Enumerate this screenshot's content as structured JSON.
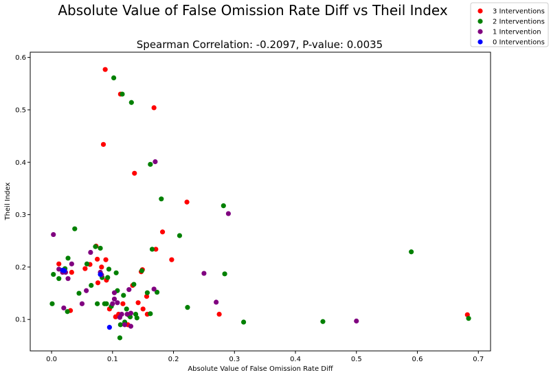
{
  "chart_data": {
    "type": "scatter",
    "suptitle": "Absolute Value of False Omission Rate Diff vs Theil Index",
    "title": "Spearman Correlation: -0.2097, P-value: 0.0035",
    "xlabel": "Absolute Value of False Omission Rate Diff",
    "ylabel": "Theil Index",
    "xlim": [
      -0.035,
      0.72
    ],
    "ylim": [
      0.04,
      0.61
    ],
    "xticks": [
      0.0,
      0.1,
      0.2,
      0.3,
      0.4,
      0.5,
      0.6,
      0.7
    ],
    "xtick_labels": [
      "0.0",
      "0.1",
      "0.2",
      "0.3",
      "0.4",
      "0.5",
      "0.6",
      "0.7"
    ],
    "yticks": [
      0.1,
      0.2,
      0.3,
      0.4,
      0.5,
      0.6
    ],
    "ytick_labels": [
      "0.1",
      "0.2",
      "0.3",
      "0.4",
      "0.5",
      "0.6"
    ],
    "legend_position": "top-right (outside plot)",
    "series": [
      {
        "name": "3 Interventions",
        "color": "#ff0000",
        "points": [
          [
            0.088,
            0.577
          ],
          [
            0.113,
            0.53
          ],
          [
            0.168,
            0.504
          ],
          [
            0.085,
            0.434
          ],
          [
            0.136,
            0.379
          ],
          [
            0.222,
            0.324
          ],
          [
            0.182,
            0.267
          ],
          [
            0.197,
            0.214
          ],
          [
            0.171,
            0.234
          ],
          [
            0.012,
            0.206
          ],
          [
            0.033,
            0.19
          ],
          [
            0.055,
            0.197
          ],
          [
            0.063,
            0.205
          ],
          [
            0.073,
            0.24
          ],
          [
            0.075,
            0.215
          ],
          [
            0.082,
            0.2
          ],
          [
            0.089,
            0.214
          ],
          [
            0.09,
            0.175
          ],
          [
            0.076,
            0.17
          ],
          [
            0.105,
            0.105
          ],
          [
            0.11,
            0.11
          ],
          [
            0.117,
            0.13
          ],
          [
            0.133,
            0.165
          ],
          [
            0.142,
            0.132
          ],
          [
            0.149,
            0.195
          ],
          [
            0.147,
            0.191
          ],
          [
            0.156,
            0.144
          ],
          [
            0.15,
            0.12
          ],
          [
            0.157,
            0.11
          ],
          [
            0.031,
            0.117
          ],
          [
            0.095,
            0.12
          ],
          [
            0.125,
            0.09
          ],
          [
            0.275,
            0.11
          ],
          [
            0.682,
            0.109
          ]
        ]
      },
      {
        "name": "2 Interventions",
        "color": "#008000",
        "points": [
          [
            0.102,
            0.561
          ],
          [
            0.116,
            0.53
          ],
          [
            0.131,
            0.514
          ],
          [
            0.162,
            0.396
          ],
          [
            0.18,
            0.33
          ],
          [
            0.282,
            0.317
          ],
          [
            0.21,
            0.26
          ],
          [
            0.038,
            0.273
          ],
          [
            0.027,
            0.217
          ],
          [
            0.003,
            0.186
          ],
          [
            0.012,
            0.178
          ],
          [
            0.022,
            0.197
          ],
          [
            0.026,
            0.115
          ],
          [
            0.001,
            0.13
          ],
          [
            0.045,
            0.15
          ],
          [
            0.058,
            0.206
          ],
          [
            0.065,
            0.165
          ],
          [
            0.072,
            0.239
          ],
          [
            0.075,
            0.13
          ],
          [
            0.08,
            0.236
          ],
          [
            0.083,
            0.18
          ],
          [
            0.087,
            0.13
          ],
          [
            0.09,
            0.13
          ],
          [
            0.092,
            0.18
          ],
          [
            0.094,
            0.196
          ],
          [
            0.098,
            0.125
          ],
          [
            0.106,
            0.189
          ],
          [
            0.108,
            0.155
          ],
          [
            0.112,
            0.065
          ],
          [
            0.113,
            0.09
          ],
          [
            0.118,
            0.146
          ],
          [
            0.12,
            0.095
          ],
          [
            0.123,
            0.12
          ],
          [
            0.127,
            0.108
          ],
          [
            0.129,
            0.105
          ],
          [
            0.135,
            0.167
          ],
          [
            0.138,
            0.11
          ],
          [
            0.14,
            0.103
          ],
          [
            0.148,
            0.193
          ],
          [
            0.157,
            0.151
          ],
          [
            0.162,
            0.111
          ],
          [
            0.165,
            0.234
          ],
          [
            0.173,
            0.152
          ],
          [
            0.223,
            0.123
          ],
          [
            0.284,
            0.187
          ],
          [
            0.315,
            0.095
          ],
          [
            0.445,
            0.096
          ],
          [
            0.59,
            0.229
          ],
          [
            0.684,
            0.102
          ]
        ]
      },
      {
        "name": "1 Intervention",
        "color": "#800080",
        "points": [
          [
            0.003,
            0.262
          ],
          [
            0.02,
            0.122
          ],
          [
            0.023,
            0.19
          ],
          [
            0.027,
            0.178
          ],
          [
            0.033,
            0.206
          ],
          [
            0.012,
            0.196
          ],
          [
            0.018,
            0.19
          ],
          [
            0.05,
            0.13
          ],
          [
            0.057,
            0.155
          ],
          [
            0.064,
            0.228
          ],
          [
            0.08,
            0.19
          ],
          [
            0.082,
            0.185
          ],
          [
            0.1,
            0.13
          ],
          [
            0.103,
            0.139
          ],
          [
            0.103,
            0.151
          ],
          [
            0.108,
            0.132
          ],
          [
            0.112,
            0.104
          ],
          [
            0.115,
            0.11
          ],
          [
            0.12,
            0.09
          ],
          [
            0.124,
            0.11
          ],
          [
            0.127,
            0.157
          ],
          [
            0.13,
            0.112
          ],
          [
            0.13,
            0.087
          ],
          [
            0.17,
            0.401
          ],
          [
            0.168,
            0.158
          ],
          [
            0.25,
            0.188
          ],
          [
            0.27,
            0.133
          ],
          [
            0.29,
            0.302
          ],
          [
            0.5,
            0.097
          ]
        ]
      },
      {
        "name": "0 Interventions",
        "color": "#0000ff",
        "points": [
          [
            0.018,
            0.194
          ],
          [
            0.021,
            0.193
          ],
          [
            0.08,
            0.186
          ],
          [
            0.095,
            0.085
          ]
        ]
      }
    ]
  }
}
